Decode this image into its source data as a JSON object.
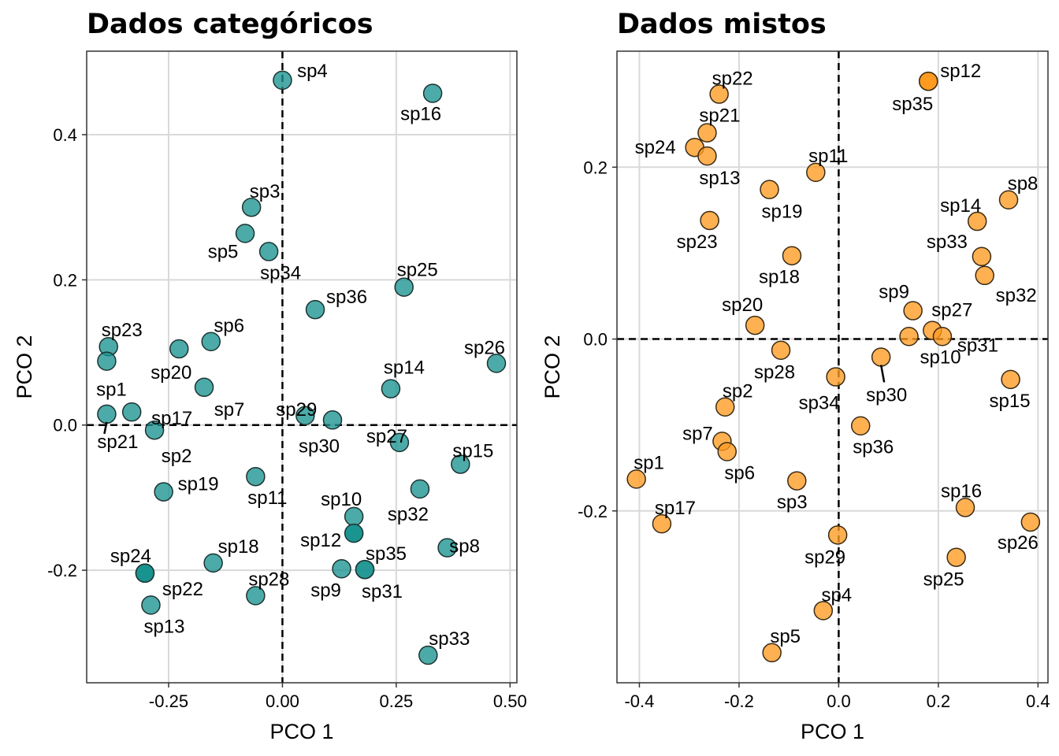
{
  "chart_data": [
    {
      "type": "scatter",
      "title": "Dados categóricos",
      "xlabel": "PCO 1",
      "ylabel": "PCO 2",
      "xlim": [
        -0.43,
        0.515
      ],
      "ylim": [
        -0.355,
        0.515
      ],
      "xticks": [
        -0.25,
        0.0,
        0.25,
        0.5
      ],
      "xtick_labels": [
        "-0.25",
        "0.00",
        "0.25",
        "0.50"
      ],
      "yticks": [
        -0.2,
        0.0,
        0.2,
        0.4
      ],
      "ytick_labels": [
        "-0.2",
        "0.0",
        "0.2",
        "0.4"
      ],
      "grid": true,
      "zero_lines": true,
      "point_color": "#1a9490",
      "points": [
        {
          "label": "sp4",
          "x": 0.0,
          "y": 0.475
        },
        {
          "label": "sp16",
          "x": 0.33,
          "y": 0.457
        },
        {
          "label": "sp3",
          "x": -0.068,
          "y": 0.3
        },
        {
          "label": "sp5",
          "x": -0.082,
          "y": 0.264
        },
        {
          "label": "sp34",
          "x": -0.03,
          "y": 0.239
        },
        {
          "label": "sp25",
          "x": 0.267,
          "y": 0.19
        },
        {
          "label": "sp36",
          "x": 0.072,
          "y": 0.159
        },
        {
          "label": "sp23",
          "x": -0.382,
          "y": 0.108
        },
        {
          "label": "sp6",
          "x": -0.157,
          "y": 0.115
        },
        {
          "label": "sp20",
          "x": -0.227,
          "y": 0.105
        },
        {
          "label": "sp26",
          "x": 0.47,
          "y": 0.085
        },
        {
          "label": "sp1",
          "x": -0.386,
          "y": 0.088
        },
        {
          "label": "sp14",
          "x": 0.238,
          "y": 0.05
        },
        {
          "label": "sp7",
          "x": -0.172,
          "y": 0.052
        },
        {
          "label": "sp17",
          "x": -0.331,
          "y": 0.018
        },
        {
          "label": "sp21",
          "x": -0.386,
          "y": 0.015
        },
        {
          "label": "sp29",
          "x": 0.05,
          "y": 0.013
        },
        {
          "label": "sp30",
          "x": 0.11,
          "y": 0.007
        },
        {
          "label": "sp2",
          "x": -0.281,
          "y": -0.007
        },
        {
          "label": "sp27",
          "x": 0.257,
          "y": -0.024
        },
        {
          "label": "sp15",
          "x": 0.391,
          "y": -0.054
        },
        {
          "label": "sp11",
          "x": -0.059,
          "y": -0.071
        },
        {
          "label": "sp19",
          "x": -0.261,
          "y": -0.092
        },
        {
          "label": "sp32",
          "x": 0.302,
          "y": -0.088
        },
        {
          "label": "sp10",
          "x": 0.157,
          "y": -0.126
        },
        {
          "label": "sp12",
          "x": 0.157,
          "y": -0.149
        },
        {
          "label": "sp8",
          "x": 0.362,
          "y": -0.169
        },
        {
          "label": "sp24",
          "x": -0.302,
          "y": -0.204
        },
        {
          "label": "sp18",
          "x": -0.152,
          "y": -0.19
        },
        {
          "label": "sp35",
          "x": 0.181,
          "y": -0.199
        },
        {
          "label": "sp9",
          "x": 0.13,
          "y": -0.198
        },
        {
          "label": "sp31",
          "x": 0.181,
          "y": -0.199
        },
        {
          "label": "sp28",
          "x": -0.059,
          "y": -0.235
        },
        {
          "label": "sp22",
          "x": -0.302,
          "y": -0.204
        },
        {
          "label": "sp13",
          "x": -0.289,
          "y": -0.248
        },
        {
          "label": "sp33",
          "x": 0.32,
          "y": -0.317
        }
      ]
    },
    {
      "type": "scatter",
      "title": "Dados mistos",
      "xlabel": "PCO 1",
      "ylabel": "PCO 2",
      "xlim": [
        -0.445,
        0.42
      ],
      "ylim": [
        -0.4,
        0.335
      ],
      "xticks": [
        -0.4,
        -0.2,
        0.0,
        0.2,
        0.4
      ],
      "xtick_labels": [
        "-0.4",
        "-0.2",
        "0.0",
        "0.2",
        "0.4"
      ],
      "yticks": [
        -0.2,
        0.0,
        0.2
      ],
      "ytick_labels": [
        "-0.2",
        "0.0",
        "0.2"
      ],
      "grid": true,
      "zero_lines": true,
      "point_color": "#ff9b21",
      "points": [
        {
          "label": "sp22",
          "x": -0.24,
          "y": 0.285
        },
        {
          "label": "sp12",
          "x": 0.18,
          "y": 0.3
        },
        {
          "label": "sp35",
          "x": 0.18,
          "y": 0.3
        },
        {
          "label": "sp21",
          "x": -0.264,
          "y": 0.24
        },
        {
          "label": "sp24",
          "x": -0.289,
          "y": 0.223
        },
        {
          "label": "sp13",
          "x": -0.264,
          "y": 0.213
        },
        {
          "label": "sp11",
          "x": -0.046,
          "y": 0.194
        },
        {
          "label": "sp19",
          "x": -0.139,
          "y": 0.174
        },
        {
          "label": "sp8",
          "x": 0.341,
          "y": 0.162
        },
        {
          "label": "sp14",
          "x": 0.278,
          "y": 0.137
        },
        {
          "label": "sp23",
          "x": -0.259,
          "y": 0.138
        },
        {
          "label": "sp33",
          "x": 0.287,
          "y": 0.096
        },
        {
          "label": "sp18",
          "x": -0.094,
          "y": 0.097
        },
        {
          "label": "sp32",
          "x": 0.293,
          "y": 0.074
        },
        {
          "label": "sp9",
          "x": 0.149,
          "y": 0.033
        },
        {
          "label": "sp20",
          "x": -0.168,
          "y": 0.016
        },
        {
          "label": "sp27",
          "x": 0.188,
          "y": 0.01
        },
        {
          "label": "sp31",
          "x": 0.208,
          "y": 0.003
        },
        {
          "label": "sp10",
          "x": 0.141,
          "y": 0.003
        },
        {
          "label": "sp28",
          "x": -0.116,
          "y": -0.013
        },
        {
          "label": "sp30",
          "x": 0.085,
          "y": -0.021
        },
        {
          "label": "sp34",
          "x": -0.006,
          "y": -0.044
        },
        {
          "label": "sp15",
          "x": 0.345,
          "y": -0.047
        },
        {
          "label": "sp2",
          "x": -0.228,
          "y": -0.079
        },
        {
          "label": "sp36",
          "x": 0.044,
          "y": -0.101
        },
        {
          "label": "sp7",
          "x": -0.234,
          "y": -0.119
        },
        {
          "label": "sp6",
          "x": -0.224,
          "y": -0.131
        },
        {
          "label": "sp1",
          "x": -0.406,
          "y": -0.163
        },
        {
          "label": "sp3",
          "x": -0.084,
          "y": -0.165
        },
        {
          "label": "sp16",
          "x": 0.254,
          "y": -0.196
        },
        {
          "label": "sp17",
          "x": -0.355,
          "y": -0.215
        },
        {
          "label": "sp26",
          "x": 0.385,
          "y": -0.213
        },
        {
          "label": "sp29",
          "x": -0.002,
          "y": -0.228
        },
        {
          "label": "sp25",
          "x": 0.236,
          "y": -0.254
        },
        {
          "label": "sp4",
          "x": -0.031,
          "y": -0.316
        },
        {
          "label": "sp5",
          "x": -0.134,
          "y": -0.365
        }
      ]
    }
  ]
}
